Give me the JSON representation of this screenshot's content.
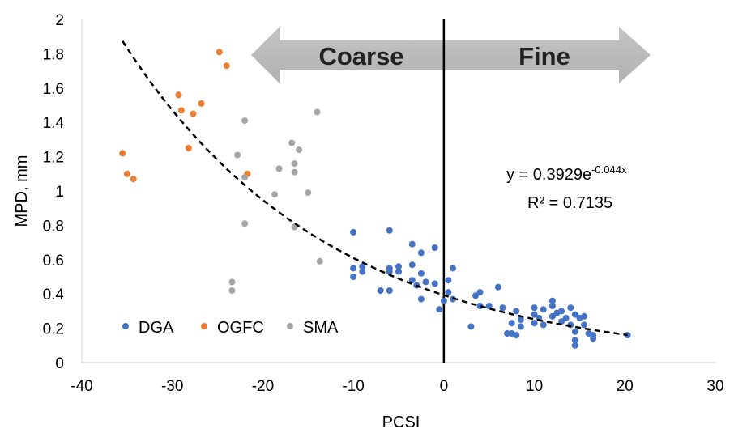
{
  "chart_data": {
    "type": "scatter",
    "title": "",
    "xlabel": "PCSI",
    "ylabel": "MPD, mm",
    "xlim": [
      -40,
      30
    ],
    "ylim": [
      0,
      2
    ],
    "xticks": [
      "-40",
      "-30",
      "-20",
      "-10",
      "0",
      "10",
      "20",
      "30"
    ],
    "yticks": [
      "0",
      "0.2",
      "0.4",
      "0.6",
      "0.8",
      "1",
      "1.2",
      "1.4",
      "1.6",
      "1.8",
      "2"
    ],
    "grid": false,
    "legend_position": "bottom-left",
    "vertical_line_x": 0,
    "region_labels": {
      "left": "Coarse",
      "right": "Fine"
    },
    "trendline": {
      "type": "exponential",
      "a": 0.3929,
      "b": -0.044,
      "x_range": [
        -35.5,
        20.3
      ],
      "equation": "y = 0.3929e",
      "exponent": "-0.044x",
      "r2_label": "R² = 0.7135"
    },
    "series": [
      {
        "name": "DGA",
        "color": "#4472C4",
        "points": [
          [
            -10,
            0.76
          ],
          [
            -10,
            0.55
          ],
          [
            -10,
            0.5
          ],
          [
            -9,
            0.56
          ],
          [
            -9,
            0.53
          ],
          [
            -7,
            0.42
          ],
          [
            -6,
            0.77
          ],
          [
            -6,
            0.55
          ],
          [
            -6,
            0.53
          ],
          [
            -6,
            0.42
          ],
          [
            -5,
            0.56
          ],
          [
            -5,
            0.53
          ],
          [
            -3.5,
            0.69
          ],
          [
            -3.5,
            0.57
          ],
          [
            -3.5,
            0.48
          ],
          [
            -3,
            0.45
          ],
          [
            -2.5,
            0.64
          ],
          [
            -2.5,
            0.52
          ],
          [
            -2.5,
            0.37
          ],
          [
            -2,
            0.47
          ],
          [
            -1,
            0.67
          ],
          [
            -1,
            0.46
          ],
          [
            -0.5,
            0.31
          ],
          [
            0,
            0.36
          ],
          [
            0.5,
            0.48
          ],
          [
            0.5,
            0.41
          ],
          [
            1,
            0.55
          ],
          [
            1,
            0.37
          ],
          [
            3,
            0.21
          ],
          [
            3.5,
            0.39
          ],
          [
            4,
            0.41
          ],
          [
            4,
            0.33
          ],
          [
            5,
            0.33
          ],
          [
            6,
            0.44
          ],
          [
            6.5,
            0.32
          ],
          [
            7,
            0.17
          ],
          [
            7.5,
            0.23
          ],
          [
            7.5,
            0.17
          ],
          [
            8,
            0.3
          ],
          [
            8,
            0.16
          ],
          [
            8.5,
            0.25
          ],
          [
            8.5,
            0.21
          ],
          [
            10,
            0.32
          ],
          [
            10,
            0.28
          ],
          [
            10,
            0.23
          ],
          [
            10.5,
            0.26
          ],
          [
            11,
            0.31
          ],
          [
            11,
            0.22
          ],
          [
            12,
            0.36
          ],
          [
            12,
            0.33
          ],
          [
            12,
            0.27
          ],
          [
            12.5,
            0.29
          ],
          [
            13,
            0.3
          ],
          [
            13,
            0.24
          ],
          [
            13.5,
            0.26
          ],
          [
            14,
            0.32
          ],
          [
            14,
            0.22
          ],
          [
            14.5,
            0.28
          ],
          [
            14.5,
            0.18
          ],
          [
            14.5,
            0.13
          ],
          [
            14.5,
            0.1
          ],
          [
            15,
            0.26
          ],
          [
            15.5,
            0.27
          ],
          [
            15.5,
            0.22
          ],
          [
            16,
            0.17
          ],
          [
            16.5,
            0.14
          ],
          [
            16.5,
            0.16
          ],
          [
            20.3,
            0.16
          ]
        ]
      },
      {
        "name": "OGFC",
        "color": "#ED7D31",
        "points": [
          [
            -35.5,
            1.22
          ],
          [
            -35,
            1.1
          ],
          [
            -34.3,
            1.07
          ],
          [
            -29.3,
            1.56
          ],
          [
            -29,
            1.47
          ],
          [
            -28.2,
            1.25
          ],
          [
            -27.7,
            1.45
          ],
          [
            -26.8,
            1.51
          ],
          [
            -24.8,
            1.81
          ],
          [
            -24,
            1.73
          ],
          [
            -21.7,
            1.1
          ]
        ]
      },
      {
        "name": "SMA",
        "color": "#A5A5A5",
        "points": [
          [
            -23.4,
            0.47
          ],
          [
            -23.4,
            0.42
          ],
          [
            -22.8,
            1.21
          ],
          [
            -22,
            1.41
          ],
          [
            -22,
            1.08
          ],
          [
            -22,
            0.81
          ],
          [
            -18.7,
            0.98
          ],
          [
            -18.2,
            1.13
          ],
          [
            -16.8,
            1.28
          ],
          [
            -16.5,
            1.16
          ],
          [
            -16.5,
            1.11
          ],
          [
            -16.5,
            0.79
          ],
          [
            -16,
            1.24
          ],
          [
            -15,
            0.99
          ],
          [
            -14,
            1.46
          ],
          [
            -13.7,
            0.59
          ]
        ]
      }
    ]
  }
}
